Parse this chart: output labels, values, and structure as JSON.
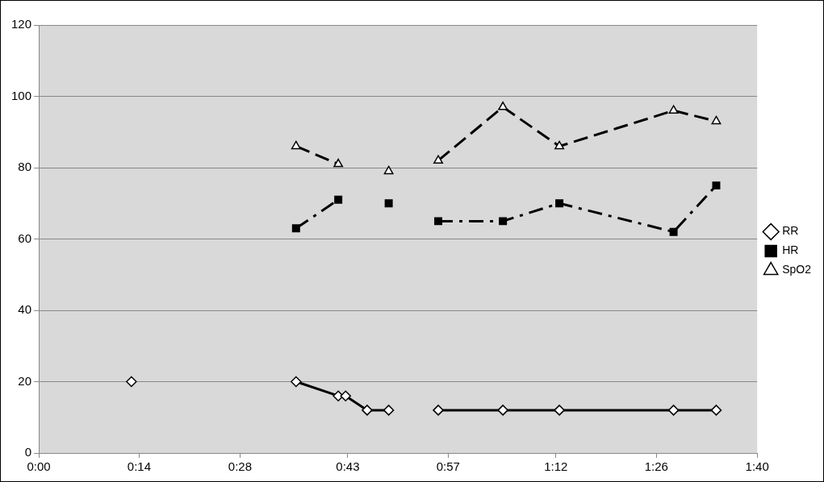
{
  "chart_data": {
    "type": "line",
    "x": [
      0.215,
      0.4,
      0.597,
      0.695,
      0.712,
      0.762,
      0.812,
      0.87,
      0.927,
      1.077,
      1.208,
      1.473,
      1.572
    ],
    "series": [
      {
        "name": "RR",
        "color": "#000000",
        "marker": "diamond",
        "line_style": "solid",
        "values": [
          20,
          null,
          20,
          16,
          16,
          12,
          12,
          null,
          12,
          12,
          12,
          12,
          12
        ]
      },
      {
        "name": "HR",
        "color": "#000000",
        "marker": "square",
        "line_style": "dashdot",
        "values": [
          null,
          null,
          63,
          71,
          null,
          null,
          70,
          null,
          65,
          65,
          70,
          62,
          75
        ]
      },
      {
        "name": "SpO2",
        "color": "#000000",
        "marker": "triangle",
        "line_style": "dashed",
        "values": [
          null,
          null,
          86,
          81,
          null,
          null,
          79,
          null,
          82,
          97,
          86,
          96,
          93
        ]
      }
    ],
    "xlim": [
      0,
      1.667
    ],
    "xticks": [
      {
        "value": 0,
        "label": "0:00"
      },
      {
        "value": 0.233,
        "label": "0:14"
      },
      {
        "value": 0.467,
        "label": "0:28"
      },
      {
        "value": 0.717,
        "label": "0:43"
      },
      {
        "value": 0.95,
        "label": "0:57"
      },
      {
        "value": 1.2,
        "label": "1:12"
      },
      {
        "value": 1.433,
        "label": "1:26"
      },
      {
        "value": 1.667,
        "label": "1:40"
      }
    ],
    "ylim": [
      0,
      120
    ],
    "yticks": [
      0,
      20,
      40,
      60,
      80,
      100,
      120
    ],
    "grid": "y",
    "legend": "right"
  }
}
